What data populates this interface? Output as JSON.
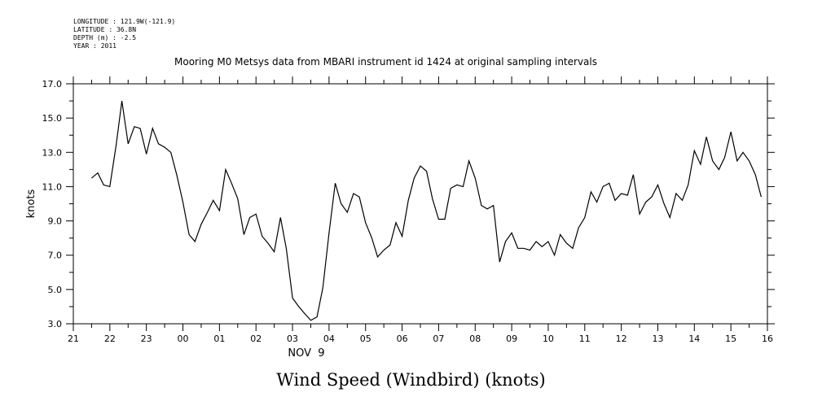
{
  "header": {
    "longitude": "LONGITUDE : 121.9W(-121.9)",
    "latitude": "LATITUDE : 36.8N",
    "depth": "DEPTH (m) : -2.5",
    "year": "YEAR : 2011"
  },
  "chart_data": {
    "type": "line",
    "title": "Mooring M0 Metsys data from MBARI instrument id 1424 at original sampling intervals",
    "footer_title": "Wind Speed (Windbird) (knots)",
    "ylabel": "knots",
    "xlabel": "NOV  9",
    "ylim": [
      3.0,
      17.0
    ],
    "xlim": [
      21,
      40
    ],
    "y_ticks": [
      "3.0",
      "5.0",
      "7.0",
      "9.0",
      "11.0",
      "13.0",
      "15.0",
      "17.0"
    ],
    "x_ticks": [
      "21",
      "22",
      "23",
      "00",
      "01",
      "02",
      "03",
      "04",
      "05",
      "06",
      "07",
      "08",
      "09",
      "10",
      "11",
      "12",
      "13",
      "14",
      "15",
      "16"
    ],
    "grid": false,
    "series": [
      {
        "color": "#000000",
        "x": [
          21.5,
          21.67,
          21.83,
          22.0,
          22.17,
          22.33,
          22.5,
          22.67,
          22.83,
          23.0,
          23.17,
          23.33,
          23.5,
          23.67,
          23.83,
          24.0,
          24.17,
          24.33,
          24.5,
          24.67,
          24.83,
          25.0,
          25.17,
          25.33,
          25.5,
          25.67,
          25.83,
          26.0,
          26.17,
          26.33,
          26.5,
          26.67,
          26.83,
          27.0,
          27.17,
          27.33,
          27.5,
          27.67,
          27.83,
          28.0,
          28.17,
          28.33,
          28.5,
          28.67,
          28.83,
          29.0,
          29.17,
          29.33,
          29.5,
          29.67,
          29.83,
          30.0,
          30.17,
          30.33,
          30.5,
          30.67,
          30.83,
          31.0,
          31.17,
          31.33,
          31.5,
          31.67,
          31.83,
          32.0,
          32.17,
          32.33,
          32.5,
          32.67,
          32.83,
          33.0,
          33.17,
          33.33,
          33.5,
          33.67,
          33.83,
          34.0,
          34.17,
          34.33,
          34.5,
          34.67,
          34.83,
          35.0,
          35.17,
          35.33,
          35.5,
          35.67,
          35.83,
          36.0,
          36.17,
          36.33,
          36.5,
          36.67,
          36.83,
          37.0,
          37.17,
          37.33,
          37.5,
          37.67,
          37.83,
          38.0,
          38.17,
          38.33,
          38.5,
          38.67,
          38.83,
          39.0,
          39.17,
          39.33,
          39.5,
          39.67,
          39.83
        ],
        "y": [
          11.5,
          11.8,
          11.1,
          11.0,
          13.4,
          16.0,
          13.5,
          14.5,
          14.4,
          12.9,
          14.4,
          13.5,
          13.3,
          13.0,
          11.7,
          10.1,
          8.2,
          7.8,
          8.8,
          9.5,
          10.2,
          9.6,
          12.0,
          11.2,
          10.3,
          8.2,
          9.2,
          9.4,
          8.1,
          7.7,
          7.2,
          9.2,
          7.4,
          4.5,
          4.0,
          3.6,
          3.2,
          3.4,
          5.1,
          8.3,
          11.2,
          10.0,
          9.5,
          10.6,
          10.4,
          8.9,
          8.0,
          6.9,
          7.3,
          7.6,
          8.9,
          8.1,
          10.2,
          11.5,
          12.2,
          11.9,
          10.3,
          9.1,
          9.1,
          10.9,
          11.1,
          11.0,
          12.5,
          11.5,
          9.9,
          9.7,
          9.9,
          6.6,
          7.8,
          8.3,
          7.4,
          7.4,
          7.3,
          7.8,
          7.5,
          7.8,
          7.0,
          8.2,
          7.7,
          7.4,
          8.6,
          9.2,
          10.7,
          10.1,
          11.0,
          11.2,
          10.2,
          10.6,
          10.5,
          11.7,
          9.4,
          10.1,
          10.4,
          11.1,
          10.0,
          9.2,
          10.6,
          10.2,
          11.1,
          13.1,
          12.3,
          13.9,
          12.5,
          12.0,
          12.7,
          14.2,
          12.5,
          13.0,
          12.5,
          11.7,
          10.4
        ]
      }
    ]
  }
}
